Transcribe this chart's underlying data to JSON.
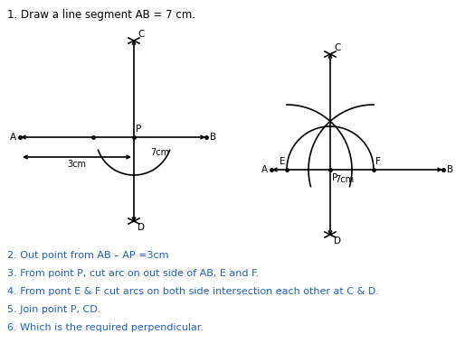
{
  "title": "1. Draw a line segment AB = 7 cm.",
  "title_color": "#000000",
  "steps": [
    "2. Out point from AB – AP =3cm",
    "3. From point P, cut arc on out side of AB, E and F.",
    "4. From pont E & F cut arcs on both side intersection each other at C & D.",
    "5. Join point P, CD.",
    "6. Which is the required perpendicular."
  ],
  "steps_color": "#2060c0",
  "bg_color": "#ffffff",
  "line_color": "#000000",
  "fig_width": 5.14,
  "fig_height": 3.9,
  "dpi": 100,
  "title_fontsize": 8.5,
  "label_fontsize": 7.5,
  "steps_fontsize": 8.0,
  "lw": 1.2
}
